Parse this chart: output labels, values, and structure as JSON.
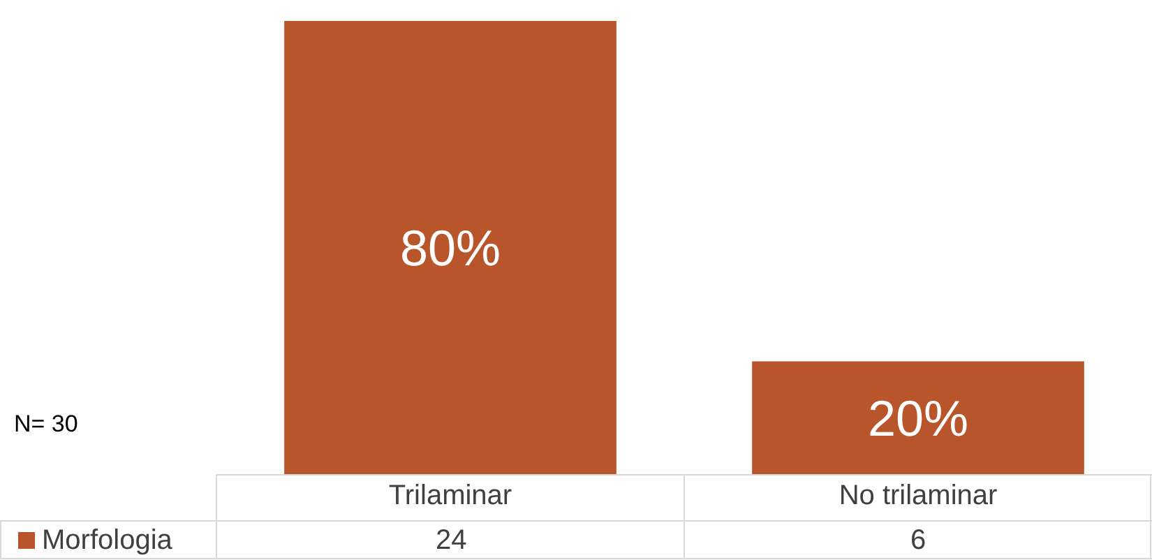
{
  "chart_data": {
    "type": "bar",
    "categories": [
      "Trilaminar",
      "No trilaminar"
    ],
    "series": [
      {
        "name": "Morfologia",
        "color": "#b9552b",
        "values": [
          80,
          20
        ],
        "value_labels": [
          "80%",
          "20%"
        ]
      }
    ],
    "annotations": [
      "N= 30",
      "24",
      "6"
    ]
  }
}
